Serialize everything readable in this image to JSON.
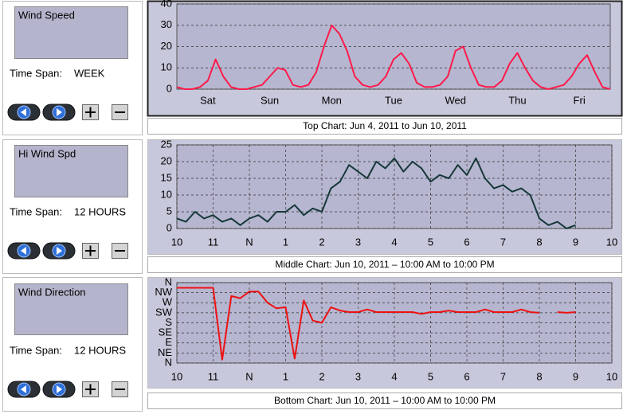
{
  "panels": [
    {
      "label": "Wind Speed",
      "time_span_label": "Time Span:",
      "time_span": "WEEK"
    },
    {
      "label": "Hi Wind Spd",
      "time_span_label": "Time Span:",
      "time_span": "12 HOURS"
    },
    {
      "label": "Wind Direction",
      "time_span_label": "Time Span:",
      "time_span": "12 HOURS"
    }
  ],
  "chart_data": [
    {
      "type": "line",
      "title": "Top Chart:  Jun 4, 2011  to  Jun 10, 2011",
      "color": "#ff1a4a",
      "grid": true,
      "xgrid": false,
      "xlim": [
        0,
        168
      ],
      "xticks": [
        {
          "value": 12,
          "label": "Sat"
        },
        {
          "value": 36,
          "label": "Sun"
        },
        {
          "value": 60,
          "label": "Mon"
        },
        {
          "value": 84,
          "label": "Tue"
        },
        {
          "value": 108,
          "label": "Wed"
        },
        {
          "value": 132,
          "label": "Thu"
        },
        {
          "value": 156,
          "label": "Fri"
        }
      ],
      "ylim": [
        0,
        40
      ],
      "yticks": [
        0,
        10,
        20,
        30,
        40
      ],
      "x": [
        0,
        3,
        6,
        9,
        12,
        15,
        18,
        21,
        24,
        27,
        30,
        33,
        36,
        39,
        42,
        45,
        48,
        51,
        54,
        57,
        60,
        63,
        66,
        69,
        72,
        75,
        78,
        81,
        84,
        87,
        90,
        93,
        96,
        99,
        102,
        105,
        108,
        111,
        114,
        117,
        120,
        123,
        126,
        129,
        132,
        135,
        138,
        141,
        144,
        147,
        150,
        153,
        156,
        159,
        162,
        165,
        168
      ],
      "values": [
        1,
        0,
        0,
        1,
        4,
        14,
        6,
        1,
        0,
        0,
        1,
        2,
        6,
        10,
        9,
        2,
        1,
        2,
        8,
        20,
        30,
        26,
        18,
        6,
        2,
        1,
        2,
        6,
        14,
        17,
        12,
        3,
        1,
        1,
        2,
        6,
        18,
        20,
        10,
        2,
        1,
        1,
        4,
        12,
        17,
        10,
        4,
        1,
        0,
        1,
        2,
        6,
        12,
        16,
        8,
        1,
        0
      ]
    },
    {
      "type": "line",
      "title": "Middle Chart:  Jun 10, 2011 – 10:00 AM  to  10:00 PM",
      "color": "#163838",
      "grid": true,
      "xgrid": true,
      "xlim": [
        10,
        22
      ],
      "xticks": [
        10,
        11,
        {
          "value": 12,
          "label": "N"
        },
        {
          "value": 13,
          "label": "1"
        },
        {
          "value": 14,
          "label": "2"
        },
        {
          "value": 15,
          "label": "3"
        },
        {
          "value": 16,
          "label": "4"
        },
        {
          "value": 17,
          "label": "5"
        },
        {
          "value": 18,
          "label": "6"
        },
        {
          "value": 19,
          "label": "7"
        },
        {
          "value": 20,
          "label": "8"
        },
        {
          "value": 21,
          "label": "9"
        },
        {
          "value": 22,
          "label": "10"
        }
      ],
      "ylim": [
        0,
        25
      ],
      "yticks": [
        0,
        5,
        10,
        15,
        20,
        25
      ],
      "x": [
        10,
        10.25,
        10.5,
        10.75,
        11,
        11.25,
        11.5,
        11.75,
        12,
        12.25,
        12.5,
        12.75,
        13,
        13.25,
        13.5,
        13.75,
        14,
        14.25,
        14.5,
        14.75,
        15,
        15.25,
        15.5,
        15.75,
        16,
        16.25,
        16.5,
        16.75,
        17,
        17.25,
        17.5,
        17.75,
        18,
        18.25,
        18.5,
        18.75,
        19,
        19.25,
        19.5,
        19.75,
        20,
        20.25,
        20.5,
        20.75,
        21
      ],
      "values": [
        3,
        2,
        5,
        3,
        4,
        2,
        3,
        1,
        3,
        4,
        2,
        5,
        5,
        7,
        4,
        6,
        5,
        12,
        14,
        19,
        17,
        15,
        20,
        18,
        21,
        17,
        20,
        18,
        14,
        16,
        15,
        19,
        16,
        21,
        15,
        12,
        13,
        11,
        12,
        10,
        3,
        1,
        2,
        0,
        1
      ]
    },
    {
      "type": "line",
      "title": "Bottom Chart:  Jun 10, 2011 – 10:00 AM  to  10:00 PM",
      "color": "#ee1111",
      "grid": true,
      "xgrid": true,
      "xlim": [
        10,
        22
      ],
      "xticks": [
        10,
        11,
        {
          "value": 12,
          "label": "N"
        },
        {
          "value": 13,
          "label": "1"
        },
        {
          "value": 14,
          "label": "2"
        },
        {
          "value": 15,
          "label": "3"
        },
        {
          "value": 16,
          "label": "4"
        },
        {
          "value": 17,
          "label": "5"
        },
        {
          "value": 18,
          "label": "6"
        },
        {
          "value": 19,
          "label": "7"
        },
        {
          "value": 20,
          "label": "8"
        },
        {
          "value": 21,
          "label": "9"
        },
        {
          "value": 22,
          "label": "10"
        }
      ],
      "ylim": [
        0,
        360
      ],
      "yticks": [
        {
          "value": 0,
          "label": "N"
        },
        {
          "value": 45,
          "label": "NE"
        },
        {
          "value": 90,
          "label": "E"
        },
        {
          "value": 135,
          "label": "SE"
        },
        {
          "value": 180,
          "label": "S"
        },
        {
          "value": 225,
          "label": "SW"
        },
        {
          "value": 270,
          "label": "W"
        },
        {
          "value": 315,
          "label": "NW"
        },
        {
          "value": 360,
          "label": "N"
        }
      ],
      "x": [
        10,
        10.25,
        10.5,
        10.75,
        11,
        11.25,
        11.5,
        11.75,
        12,
        12.25,
        12.5,
        12.75,
        13,
        13.25,
        13.5,
        13.75,
        14,
        14.25,
        14.5,
        14.75,
        15,
        15.25,
        15.5,
        15.75,
        16,
        16.25,
        16.5,
        16.75,
        17,
        17.25,
        17.5,
        17.75,
        18,
        18.25,
        18.5,
        18.75,
        19,
        19.25,
        19.5,
        19.75,
        20,
        20.25,
        20.5,
        20.75,
        21
      ],
      "values": [
        337,
        337,
        337,
        337,
        337,
        15,
        300,
        290,
        320,
        320,
        270,
        245,
        250,
        20,
        280,
        190,
        180,
        250,
        235,
        228,
        228,
        240,
        228,
        228,
        228,
        228,
        228,
        220,
        228,
        228,
        235,
        228,
        228,
        228,
        240,
        228,
        228,
        228,
        240,
        228,
        225,
        null,
        228,
        225,
        228
      ]
    }
  ]
}
